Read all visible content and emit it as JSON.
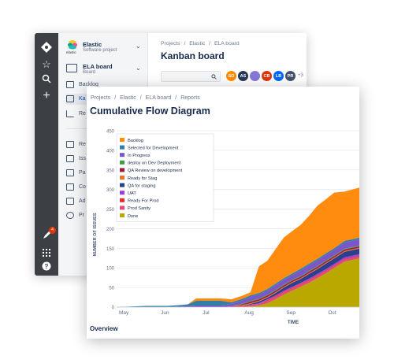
{
  "back_window": {
    "project": {
      "name": "Elastic",
      "type": "Software project",
      "logo_text": "elastic"
    },
    "board": {
      "name": "ELA board",
      "type": "Board"
    },
    "sidebar_items": [
      "Backlog",
      "Ka",
      "Re"
    ],
    "lower_items": [
      "Re",
      "Iss",
      "Pa",
      "Co",
      "Ad",
      "Pr"
    ],
    "breadcrumb": [
      "Projects",
      "Elastic",
      "ELA board"
    ],
    "page_title": "Kanban board",
    "avatars": [
      {
        "initials": "SO",
        "color": "#ff8b00"
      },
      {
        "initials": "AS",
        "color": "#253858"
      },
      {
        "initials": "",
        "color": "#8777d9"
      },
      {
        "initials": "CB",
        "color": "#de350b"
      },
      {
        "initials": "LB",
        "color": "#0065ff"
      },
      {
        "initials": "PR",
        "color": "#42526e"
      }
    ],
    "avatar_more": "+3",
    "notification_count": "4"
  },
  "front_window": {
    "breadcrumb": [
      "Projects",
      "Elastic",
      "ELA board",
      "Reports"
    ],
    "page_title": "Cumulative Flow Diagram",
    "overview_label": "Overview"
  },
  "chart_data": {
    "type": "area",
    "ylabel": "NUMBER OF ISSUES",
    "xlabel": "TIME",
    "ylim": [
      0,
      450
    ],
    "yticks": [
      0,
      50,
      100,
      150,
      200,
      250,
      300,
      350,
      400,
      450
    ],
    "xticks": [
      "May",
      "Jun",
      "Jul",
      "Aug",
      "Sep",
      "Oct"
    ],
    "legend_position": "top-left",
    "x": [
      0,
      0.45,
      0.7,
      1.0,
      1.2,
      1.5,
      1.7,
      1.9,
      2.0,
      2.25,
      2.5,
      2.75,
      3.0,
      3.2,
      3.4,
      3.6,
      3.8,
      4.0,
      4.2,
      4.4,
      4.6,
      4.8,
      5.0,
      5.2,
      5.45,
      5.8
    ],
    "series": [
      {
        "name": "Done",
        "color": "#b9a800",
        "values": [
          0,
          0,
          0,
          0,
          0,
          0,
          0,
          0,
          0,
          0,
          0,
          0,
          0,
          2,
          4,
          10,
          20,
          32,
          42,
          52,
          62,
          74,
          86,
          100,
          116,
          124
        ]
      },
      {
        "name": "Prod Sanity",
        "color": "#e24a7a",
        "values": [
          0,
          0,
          0,
          0,
          0,
          0,
          0,
          0,
          0,
          0,
          0,
          2,
          3,
          4,
          4,
          6,
          6,
          6,
          6,
          6,
          6,
          6,
          6,
          5,
          5,
          5
        ]
      },
      {
        "name": "Ready For Prod",
        "color": "#e52d2d",
        "values": [
          0,
          0,
          0,
          0,
          0,
          0,
          0,
          0,
          0,
          0,
          0,
          0,
          0,
          0,
          0,
          2,
          2,
          2,
          2,
          2,
          2,
          2,
          2,
          2,
          2,
          2
        ]
      },
      {
        "name": "UAT",
        "color": "#9b3fd6",
        "values": [
          0,
          0,
          0,
          0,
          0,
          0,
          0,
          0,
          0,
          0,
          0,
          0,
          0,
          0,
          2,
          2,
          2,
          2,
          2,
          2,
          3,
          3,
          3,
          3,
          4,
          4
        ]
      },
      {
        "name": "QA for staging",
        "color": "#2c3f8c",
        "values": [
          0,
          0,
          0,
          0,
          0,
          0,
          0,
          0,
          0,
          0,
          0,
          0,
          0,
          2,
          4,
          4,
          6,
          8,
          10,
          10,
          12,
          12,
          14,
          14,
          14,
          14
        ]
      },
      {
        "name": "Ready for Stag",
        "color": "#e8732b",
        "values": [
          0,
          0,
          0,
          0,
          0,
          0,
          0,
          0,
          0,
          0,
          0,
          0,
          2,
          2,
          2,
          2,
          2,
          2,
          2,
          2,
          2,
          2,
          2,
          2,
          2,
          2
        ]
      },
      {
        "name": "QA Review on development",
        "color": "#9c1f3e",
        "values": [
          0,
          0,
          0,
          0,
          0,
          0,
          0,
          0,
          0,
          0,
          0,
          0,
          2,
          4,
          4,
          4,
          4,
          4,
          4,
          4,
          4,
          4,
          4,
          4,
          4,
          4
        ]
      },
      {
        "name": "deploy on Dev Deployment",
        "color": "#3f9b46",
        "values": [
          0,
          0,
          0,
          0,
          0,
          0,
          0,
          0,
          0,
          0,
          0,
          0,
          2,
          2,
          2,
          2,
          2,
          2,
          2,
          2,
          2,
          2,
          2,
          2,
          2,
          2
        ]
      },
      {
        "name": "In Progress",
        "color": "#7b55c9",
        "values": [
          0,
          0,
          0,
          0,
          0,
          2,
          3,
          4,
          4,
          4,
          4,
          6,
          8,
          10,
          10,
          10,
          12,
          12,
          12,
          14,
          14,
          14,
          14,
          14,
          16,
          16
        ]
      },
      {
        "name": "Selected for Development",
        "color": "#2f7fa6",
        "values": [
          0,
          2,
          3,
          3,
          3,
          3,
          4,
          12,
          12,
          12,
          12,
          4,
          4,
          4,
          4,
          4,
          4,
          4,
          4,
          4,
          4,
          4,
          4,
          4,
          4,
          4
        ]
      },
      {
        "name": "Backlog",
        "color": "#ff8b0f",
        "values": [
          0,
          0,
          0,
          0,
          0,
          0,
          0,
          6,
          6,
          6,
          6,
          8,
          8,
          8,
          68,
          72,
          88,
          104,
          108,
          112,
          122,
          136,
          138,
          142,
          126,
          128
        ]
      }
    ]
  }
}
